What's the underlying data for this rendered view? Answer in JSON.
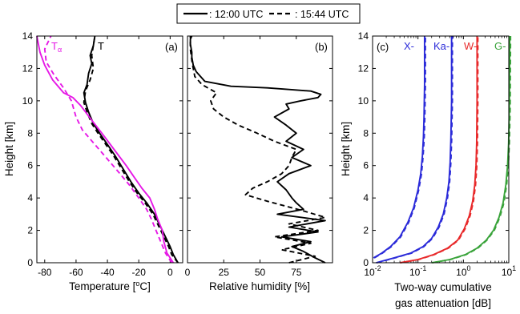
{
  "legend": {
    "solid": ": 12:00 UTC",
    "dashed": ": 15:44 UTC"
  },
  "chart_data": [
    {
      "type": "line",
      "panel": "(a)",
      "xlabel": "Temperature [°C]",
      "ylabel": "Height [km]",
      "xlim": [
        -85,
        8
      ],
      "ylim": [
        0,
        14
      ],
      "xticks": [
        -80,
        -60,
        -40,
        -20,
        0
      ],
      "yticks": [
        0,
        2,
        4,
        6,
        8,
        10,
        12,
        14
      ],
      "annotations": [
        {
          "text": "Tα",
          "color": "#e619e6"
        },
        {
          "text": "T",
          "color": "#000000"
        }
      ],
      "series": [
        {
          "key": "T",
          "time": "12:00 UTC",
          "style": "solid",
          "color": "#000000",
          "x": [
            5,
            2,
            0,
            -5,
            -10,
            -15,
            -20,
            -25,
            -30,
            -35,
            -40,
            -45,
            -49,
            -52,
            -54,
            -55,
            -53,
            -52,
            -50,
            -51,
            -49,
            -48
          ],
          "y": [
            0,
            0.5,
            1,
            2,
            3,
            3.7,
            4.3,
            5,
            5.8,
            6.6,
            7.3,
            8,
            8.6,
            9.3,
            9.9,
            10.5,
            11,
            11.7,
            12.3,
            12.8,
            13.4,
            14
          ]
        },
        {
          "key": "T",
          "time": "15:44 UTC",
          "style": "dashed",
          "color": "#000000",
          "x": [
            5,
            1,
            -1,
            -6,
            -11,
            -16,
            -21,
            -26,
            -31,
            -36,
            -41,
            -46,
            -50,
            -53,
            -55,
            -54,
            -51,
            -49,
            -50,
            -48
          ],
          "y": [
            0,
            0.5,
            1,
            2,
            3,
            3.7,
            4.3,
            5,
            5.8,
            6.6,
            7.3,
            8,
            8.6,
            9.3,
            9.9,
            10.6,
            11.3,
            12,
            12.8,
            14
          ]
        },
        {
          "key": "Ta",
          "time": "12:00 UTC",
          "style": "solid",
          "color": "#e619e6",
          "x": [
            2,
            -2,
            -4,
            -5,
            -8,
            -10,
            -13,
            -18,
            -23,
            -28,
            -35,
            -42,
            -50,
            -57,
            -62,
            -68,
            -75,
            -80,
            -83,
            -85
          ],
          "y": [
            0,
            0.6,
            1.3,
            2,
            2.7,
            3.3,
            4,
            4.6,
            5.3,
            6,
            6.9,
            7.8,
            8.8,
            9.7,
            10.2,
            10.5,
            11.3,
            12.2,
            13,
            14
          ]
        },
        {
          "key": "Ta",
          "time": "15:44 UTC",
          "style": "dashed",
          "color": "#e619e6",
          "x": [
            1,
            -3,
            -6,
            -9,
            -12,
            -15,
            -20,
            -26,
            -32,
            -40,
            -48,
            -56,
            -60,
            -63,
            -68,
            -74,
            -79,
            -80,
            -76
          ],
          "y": [
            0,
            0.6,
            1.3,
            2,
            2.7,
            3.3,
            4,
            4.8,
            5.5,
            6.4,
            7.3,
            8.2,
            9,
            10,
            10.8,
            11.6,
            12.4,
            13.2,
            14
          ]
        }
      ]
    },
    {
      "type": "line",
      "panel": "(b)",
      "xlabel": "Relative humidity [%]",
      "xlim": [
        0,
        100
      ],
      "ylim": [
        0,
        14
      ],
      "xticks": [
        0,
        25,
        50,
        75
      ],
      "series": [
        {
          "time": "12:00 UTC",
          "style": "solid",
          "color": "#000000",
          "x": [
            95,
            88,
            80,
            72,
            85,
            65,
            90,
            70,
            95,
            62,
            80,
            75,
            72,
            68,
            62,
            70,
            85,
            72,
            80,
            68,
            75,
            68,
            60,
            70,
            68,
            78,
            90,
            92,
            85,
            70,
            55,
            30,
            12,
            6,
            4,
            3,
            3,
            2,
            2,
            3
          ],
          "y": [
            0,
            0.3,
            0.7,
            1.0,
            1.3,
            1.6,
            1.9,
            2.2,
            2.6,
            3.0,
            3.3,
            3.7,
            4.0,
            4.5,
            5.0,
            5.5,
            6.0,
            6.5,
            7.0,
            7.5,
            8.0,
            8.5,
            9.0,
            9.5,
            9.8,
            10.0,
            10.2,
            10.4,
            10.6,
            10.7,
            10.8,
            10.9,
            11.2,
            11.8,
            12.2,
            12.7,
            13.0,
            13.5,
            13.8,
            14
          ]
        },
        {
          "time": "15:44 UTC",
          "style": "dashed",
          "color": "#000000",
          "x": [
            70,
            88,
            65,
            85,
            60,
            90,
            70,
            95,
            80,
            55,
            40,
            45,
            55,
            65,
            70,
            72,
            75,
            60,
            48,
            35,
            25,
            18,
            16,
            20,
            10,
            5,
            4,
            3,
            2,
            2
          ],
          "y": [
            0,
            0.4,
            0.8,
            1.2,
            1.6,
            2.0,
            2.4,
            2.8,
            3.2,
            3.8,
            4.2,
            4.6,
            5.0,
            5.5,
            6.0,
            6.5,
            7.0,
            7.5,
            8.0,
            8.5,
            9.0,
            9.5,
            10.0,
            10.5,
            11.0,
            11.5,
            12.0,
            12.5,
            13.2,
            14
          ]
        }
      ]
    },
    {
      "type": "line",
      "panel": "(c)",
      "xlabel": "Two-way cumulative",
      "xlabel2": "gas attenuation [dB]",
      "ylabel": "Height [km]",
      "xscale": "log",
      "xlim": [
        0.01,
        10
      ],
      "ylim": [
        0,
        14
      ],
      "xticks": [
        0.01,
        0.1,
        1,
        10
      ],
      "xticklabels": [
        "10",
        "10",
        "10",
        "10"
      ],
      "xtickexp": [
        "-2",
        "-1",
        "0",
        "1"
      ],
      "yticks": [
        0,
        2,
        4,
        6,
        8,
        10,
        12,
        14
      ],
      "bands": [
        {
          "label": "X-",
          "color": "#2b2bd9",
          "total": 0.14,
          "x": [
            0.0105,
            0.016,
            0.025,
            0.04,
            0.06,
            0.08,
            0.1,
            0.115,
            0.125,
            0.132,
            0.136,
            0.14,
            0.14
          ],
          "y": [
            0.3,
            0.6,
            1.0,
            1.6,
            2.5,
            3.4,
            4.5,
            5.5,
            6.6,
            7.8,
            9.0,
            11.0,
            14
          ]
        },
        {
          "label": "Ka-",
          "color": "#2b2bd9",
          "total": 0.55,
          "x": [
            0.012,
            0.03,
            0.07,
            0.13,
            0.2,
            0.28,
            0.36,
            0.43,
            0.48,
            0.51,
            0.53,
            0.55,
            0.55
          ],
          "y": [
            0.0,
            0.3,
            0.6,
            1.0,
            1.5,
            2.2,
            3.0,
            4.0,
            5.0,
            6.2,
            7.6,
            10.0,
            14
          ]
        },
        {
          "label": "W-",
          "color": "#e8292a",
          "total": 2.0,
          "x": [
            0.04,
            0.1,
            0.22,
            0.45,
            0.75,
            1.05,
            1.35,
            1.6,
            1.78,
            1.9,
            1.96,
            2.0,
            2.0
          ],
          "y": [
            0.0,
            0.2,
            0.5,
            0.9,
            1.4,
            2.1,
            2.9,
            3.8,
            4.8,
            6.0,
            7.4,
            10.0,
            14
          ]
        },
        {
          "label": "G-",
          "color": "#39a33a",
          "total": 10.5,
          "x": [
            0.2,
            0.5,
            1.1,
            2.0,
            3.2,
            4.6,
            6.1,
            7.5,
            8.6,
            9.4,
            9.9,
            10.3,
            10.5
          ],
          "y": [
            0.0,
            0.2,
            0.5,
            0.9,
            1.4,
            2.0,
            2.8,
            3.7,
            4.8,
            6.0,
            7.4,
            9.5,
            14
          ]
        }
      ]
    }
  ]
}
